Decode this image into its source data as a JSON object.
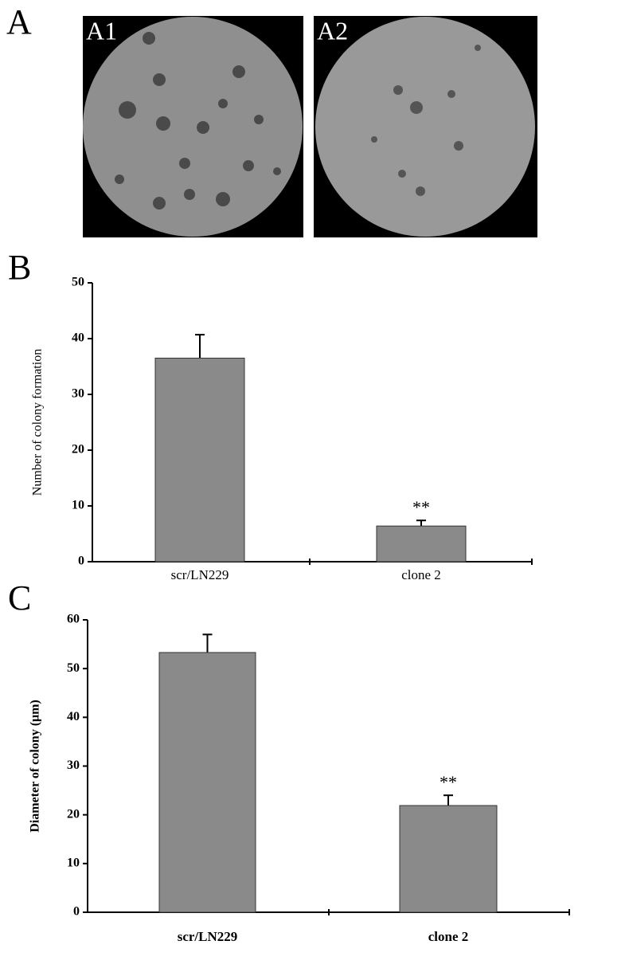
{
  "figure_a": {
    "label": "A",
    "images": [
      "A1",
      "A2"
    ]
  },
  "chart_data": [
    {
      "type": "bar",
      "panel_label": "B",
      "y_label": "Number of colony formation",
      "categories": [
        "scr/LN229",
        "clone 2"
      ],
      "values": [
        36.5,
        6.4
      ],
      "errors": [
        4.2,
        1.0
      ],
      "color": "#8a8a8a",
      "ylim": [
        0,
        50
      ],
      "yticks": [
        0,
        10,
        20,
        30,
        40,
        50
      ],
      "annotations": [
        {
          "text": "**",
          "category": "clone 2"
        }
      ]
    },
    {
      "type": "bar",
      "panel_label": "C",
      "y_label": "Diameter of colony (μm)",
      "categories": [
        "scr/LN229",
        "clone 2"
      ],
      "values": [
        53.3,
        21.9
      ],
      "errors": [
        3.7,
        2.1
      ],
      "color": "#8a8a8a",
      "ylim": [
        0,
        60
      ],
      "yticks": [
        0,
        10,
        20,
        30,
        40,
        50,
        60
      ],
      "annotations": [
        {
          "text": "**",
          "category": "clone 2"
        }
      ]
    }
  ]
}
